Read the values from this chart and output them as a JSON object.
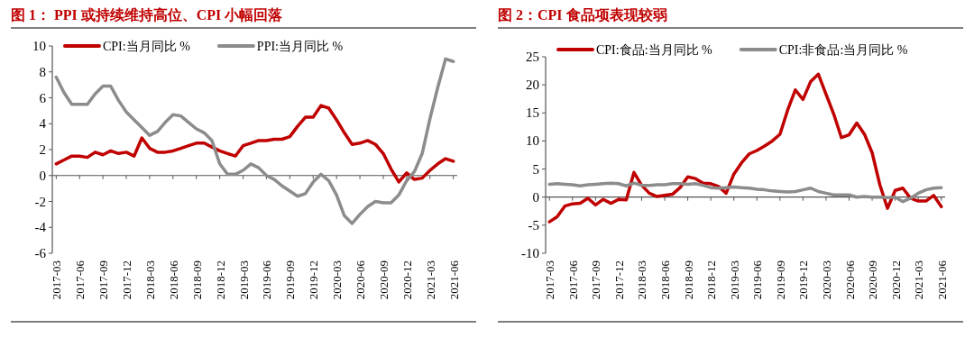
{
  "chart_data": [
    {
      "type": "line",
      "title": "图 1： PPI 或持续维持高位、CPI 小幅回落",
      "categories": [
        "2017-03",
        null,
        null,
        "2017-06",
        null,
        null,
        "2017-09",
        null,
        null,
        "2017-12",
        null,
        null,
        "2018-03",
        null,
        null,
        "2018-06",
        null,
        null,
        "2018-09",
        null,
        null,
        "2018-12",
        null,
        null,
        "2019-03",
        null,
        null,
        "2019-06",
        null,
        null,
        "2019-09",
        null,
        null,
        "2019-12",
        null,
        null,
        "2020-03",
        null,
        null,
        "2020-06",
        null,
        null,
        "2020-09",
        null,
        null,
        "2020-12",
        null,
        null,
        "2021-03",
        null,
        null,
        "2021-06"
      ],
      "series": [
        {
          "name": "CPI:当月同比 %",
          "color": "#c00000",
          "values": [
            0.9,
            1.2,
            1.5,
            1.5,
            1.4,
            1.8,
            1.6,
            1.9,
            1.7,
            1.8,
            1.5,
            2.9,
            2.1,
            1.8,
            1.8,
            1.9,
            2.1,
            2.3,
            2.5,
            2.5,
            2.2,
            1.9,
            1.7,
            1.5,
            2.3,
            2.5,
            2.7,
            2.7,
            2.8,
            2.8,
            3.0,
            3.8,
            4.5,
            4.5,
            5.4,
            5.2,
            4.3,
            3.3,
            2.4,
            2.5,
            2.7,
            2.4,
            1.7,
            0.5,
            -0.5,
            0.2,
            -0.3,
            -0.2,
            0.4,
            0.9,
            1.3,
            1.1
          ]
        },
        {
          "name": "PPI:当月同比 %",
          "color": "#8c8c8c",
          "values": [
            7.6,
            6.4,
            5.5,
            5.5,
            5.5,
            6.3,
            6.9,
            6.9,
            5.8,
            4.9,
            4.3,
            3.7,
            3.1,
            3.4,
            4.1,
            4.7,
            4.6,
            4.1,
            3.6,
            3.3,
            2.7,
            0.9,
            0.1,
            0.1,
            0.4,
            0.9,
            0.6,
            0.0,
            -0.3,
            -0.8,
            -1.2,
            -1.6,
            -1.4,
            -0.5,
            0.1,
            -0.4,
            -1.5,
            -3.1,
            -3.7,
            -3.0,
            -2.4,
            -2.0,
            -2.1,
            -2.1,
            -1.5,
            -0.4,
            0.3,
            1.7,
            4.4,
            6.8,
            9.0,
            8.8
          ]
        }
      ],
      "ylim": [
        -6,
        10
      ],
      "yticks": [
        -6,
        -4,
        -2,
        0,
        2,
        4,
        6,
        8,
        10
      ],
      "legend": "top"
    },
    {
      "type": "line",
      "title": "图 2：CPI 食品项表现较弱",
      "categories": [
        "2017-03",
        null,
        null,
        "2017-06",
        null,
        null,
        "2017-09",
        null,
        null,
        "2017-12",
        null,
        null,
        "2018-03",
        null,
        null,
        "2018-06",
        null,
        null,
        "2018-09",
        null,
        null,
        "2018-12",
        null,
        null,
        "2019-03",
        null,
        null,
        "2019-06",
        null,
        null,
        "2019-09",
        null,
        null,
        "2019-12",
        null,
        null,
        "2020-03",
        null,
        null,
        "2020-06",
        null,
        null,
        "2020-09",
        null,
        null,
        "2020-12",
        null,
        null,
        "2021-03",
        null,
        null,
        "2021-06"
      ],
      "series": [
        {
          "name": "CPI:食品:当月同比 %",
          "color": "#c00000",
          "values": [
            -4.4,
            -3.5,
            -1.6,
            -1.2,
            -1.1,
            -0.2,
            -1.4,
            -0.4,
            -1.1,
            -0.4,
            -0.5,
            4.4,
            2.1,
            0.7,
            0.1,
            0.3,
            0.5,
            1.7,
            3.6,
            3.3,
            2.5,
            2.4,
            1.9,
            0.7,
            4.1,
            6.1,
            7.7,
            8.3,
            9.1,
            10.0,
            11.2,
            15.5,
            19.1,
            17.4,
            20.6,
            21.9,
            18.3,
            14.8,
            10.6,
            11.1,
            13.2,
            11.2,
            7.9,
            2.2,
            -2.0,
            1.2,
            1.6,
            -0.2,
            -0.7,
            -0.7,
            0.3,
            -1.7
          ]
        },
        {
          "name": "CPI:非食品:当月同比 %",
          "color": "#8c8c8c",
          "values": [
            2.3,
            2.4,
            2.3,
            2.2,
            2.0,
            2.2,
            2.3,
            2.4,
            2.5,
            2.4,
            2.0,
            2.5,
            2.1,
            2.1,
            2.2,
            2.2,
            2.4,
            2.4,
            2.3,
            2.4,
            2.1,
            1.7,
            1.6,
            1.7,
            1.8,
            1.7,
            1.6,
            1.4,
            1.3,
            1.1,
            1.0,
            0.9,
            1.0,
            1.3,
            1.6,
            1.0,
            0.7,
            0.4,
            0.4,
            0.4,
            0.0,
            0.1,
            0.0,
            0.0,
            -0.1,
            0.0,
            -0.8,
            -0.2,
            0.7,
            1.3,
            1.6,
            1.7
          ]
        }
      ],
      "ylim": [
        -10,
        25
      ],
      "yticks": [
        -10,
        -5,
        0,
        5,
        10,
        15,
        20,
        25
      ],
      "legend": "top"
    }
  ]
}
